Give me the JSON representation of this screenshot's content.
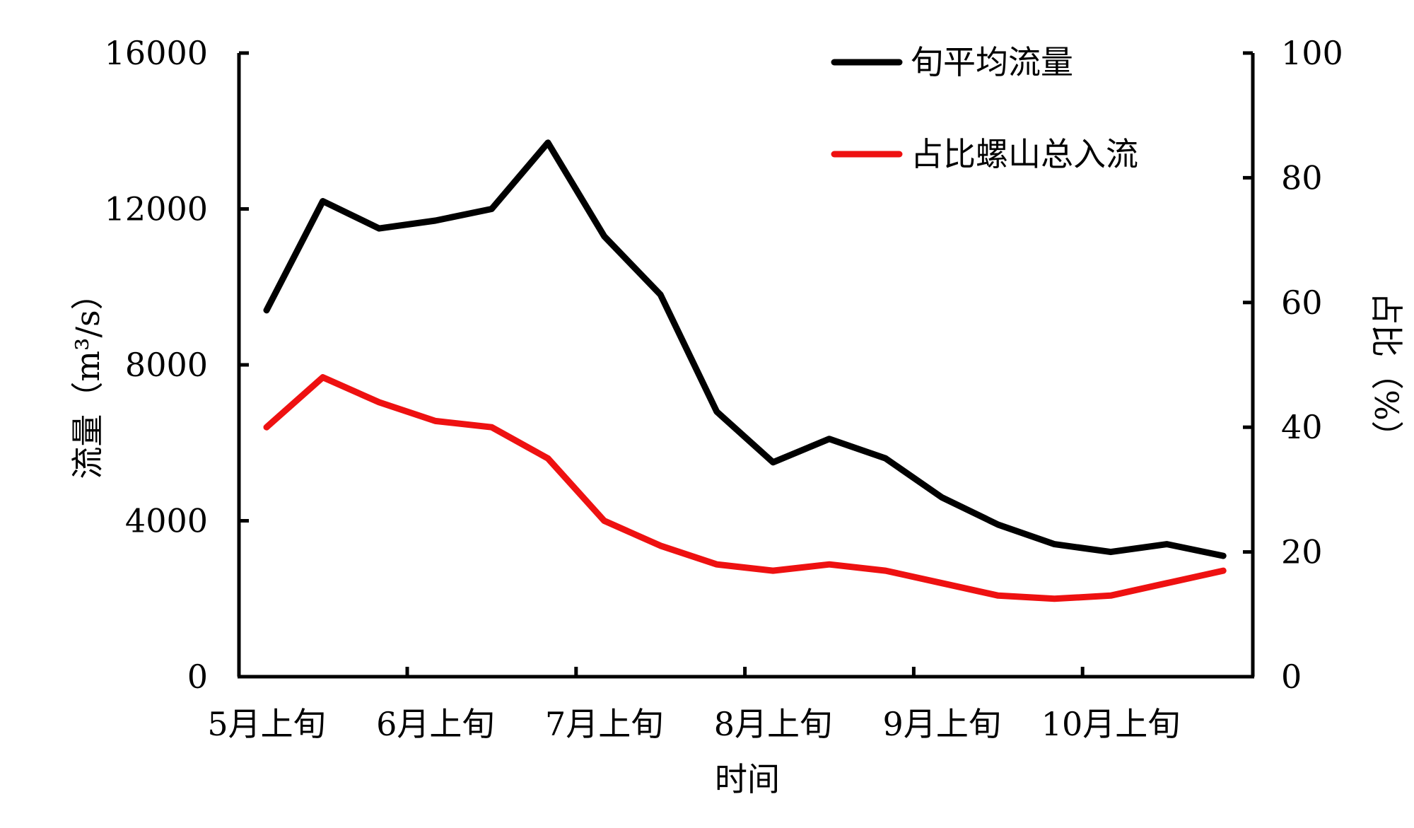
{
  "chart_data": {
    "type": "line",
    "title": "",
    "xlabel": "时间",
    "ylabel": "流量（m³/s）",
    "y2label": "占比（%）",
    "x_ticks": [
      "5月上旬",
      "6月上旬",
      "7月上旬",
      "8月上旬",
      "9月上旬",
      "10月上旬"
    ],
    "ylim": [
      0,
      16000
    ],
    "y_ticks": [
      "0",
      "4000",
      "8000",
      "12000",
      "16000"
    ],
    "y2lim": [
      0,
      100
    ],
    "y2_ticks": [
      "0",
      "20",
      "40",
      "60",
      "80",
      "100"
    ],
    "legend_position": "top-right",
    "grid": false,
    "series": [
      {
        "name": "旬平均流量",
        "axis": "left",
        "color": "#000000",
        "values": [
          9400,
          12200,
          11500,
          11700,
          12000,
          13700,
          11300,
          9800,
          6800,
          5500,
          6100,
          5600,
          4600,
          3900,
          3400,
          3200,
          3400,
          3100
        ]
      },
      {
        "name": "占比螺山总入流",
        "axis": "right",
        "color": "#ee1111",
        "values": [
          40,
          48,
          44,
          41,
          40,
          35,
          25,
          21,
          18,
          17,
          18,
          17,
          15,
          13,
          12.5,
          13,
          15,
          17
        ]
      }
    ]
  }
}
